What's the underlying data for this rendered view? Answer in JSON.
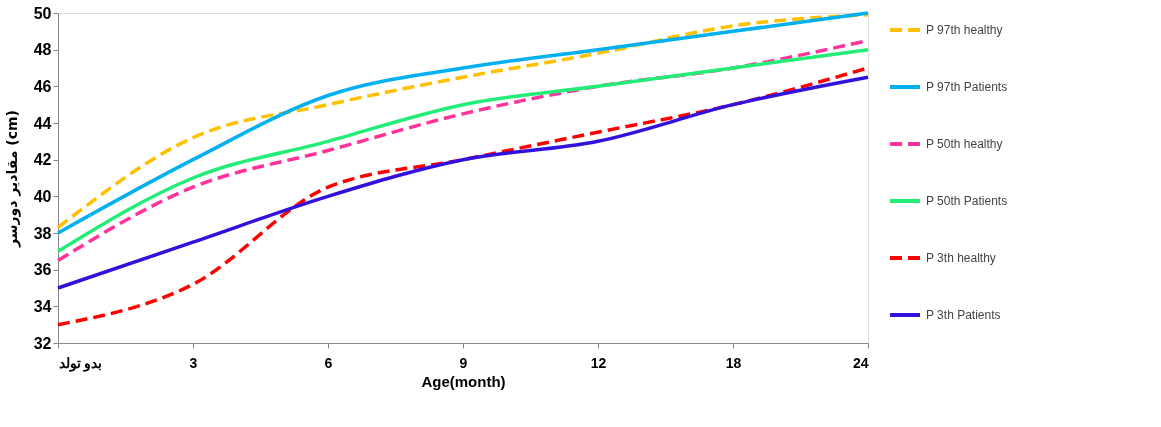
{
  "chart_data": {
    "type": "line",
    "xlabel": "Age(month)",
    "ylabel": "مقادیر دورسر (cm)",
    "categories": [
      "بدو تولد",
      "3",
      "6",
      "9",
      "12",
      "18",
      "24"
    ],
    "ylim": [
      32,
      50
    ],
    "yticks": [
      32,
      34,
      36,
      38,
      40,
      42,
      44,
      46,
      48,
      50
    ],
    "grid": false,
    "legend": "right",
    "series": [
      {
        "name": "P 97th healthy",
        "color": "#ffc000",
        "line_style": "dashed",
        "values": [
          38.3,
          43.2,
          45,
          46.5,
          47.8,
          49.3,
          49.9
        ]
      },
      {
        "name": "P 97th Patients",
        "color": "#00b0f0",
        "line_style": "solid",
        "values": [
          38,
          42,
          45.5,
          47,
          48,
          49,
          50
        ]
      },
      {
        "name": "P 50th healthy",
        "color": "#ff3399",
        "line_style": "dashed",
        "values": [
          36.5,
          40.5,
          42.5,
          44.5,
          46,
          47,
          48.5
        ]
      },
      {
        "name": "P 50th Patients",
        "color": "#22ee77",
        "line_style": "solid",
        "values": [
          37,
          41,
          43,
          45,
          46,
          47,
          48
        ]
      },
      {
        "name": "P 3th healthy",
        "color": "#ff0000",
        "line_style": "dashed",
        "values": [
          33,
          35.2,
          40.5,
          42,
          43.5,
          45,
          47
        ]
      },
      {
        "name": "P 3th Patients",
        "color": "#3311dd",
        "line_style": "solid",
        "values": [
          35,
          37.5,
          40,
          42,
          43,
          45,
          46.5
        ]
      }
    ]
  }
}
